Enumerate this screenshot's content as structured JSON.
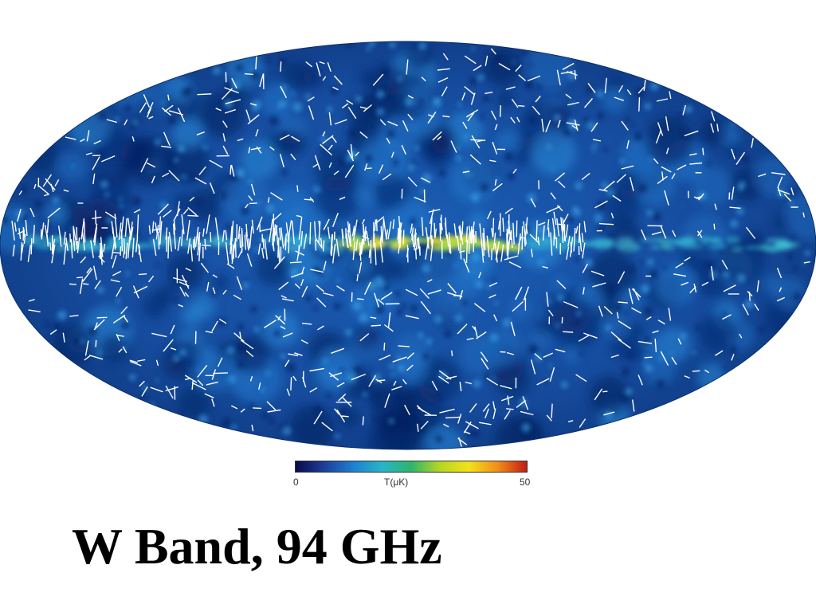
{
  "colorbar": {
    "min_label": "0",
    "unit_label": "T(μK)",
    "max_label": "50",
    "gradient": [
      "#0b0b4a",
      "#1d3f9a",
      "#1f7fd0",
      "#27b5c8",
      "#2fb56b",
      "#b7d624",
      "#f2e21a",
      "#f28c1a",
      "#c21d12"
    ]
  },
  "map": {
    "background_color": "#0d3b8a",
    "vector_color": "#ffffff"
  },
  "title": "W Band, 94 GHz"
}
